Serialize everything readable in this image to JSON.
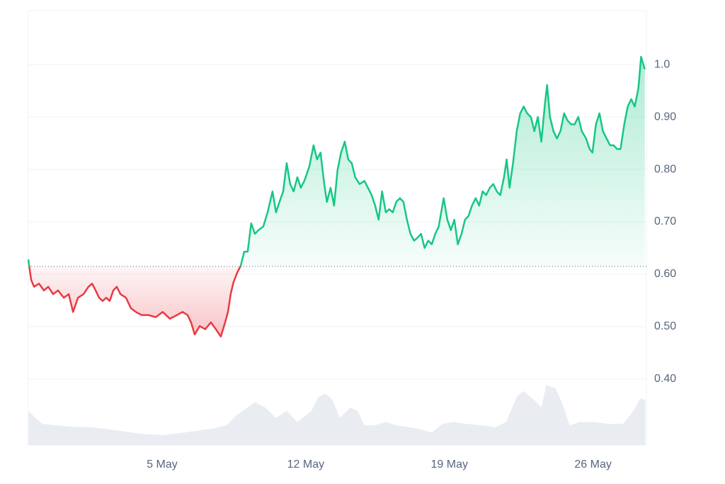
{
  "chart_data": {
    "type": "line",
    "x": [
      -1.52,
      -1.38,
      -1.24,
      -1.0,
      -0.76,
      -0.55,
      -0.31,
      -0.07,
      0.21,
      0.45,
      0.66,
      0.9,
      1.17,
      1.41,
      1.59,
      1.76,
      1.93,
      2.1,
      2.28,
      2.45,
      2.62,
      2.79,
      2.97,
      3.24,
      3.48,
      3.72,
      4.0,
      4.34,
      4.69,
      5.03,
      5.38,
      5.72,
      6.0,
      6.24,
      6.41,
      6.59,
      6.83,
      7.1,
      7.38,
      7.62,
      7.86,
      8.07,
      8.21,
      8.34,
      8.48,
      8.66,
      8.83,
      9.0,
      9.17,
      9.34,
      9.52,
      9.69,
      9.93,
      10.14,
      10.38,
      10.55,
      10.72,
      10.9,
      11.07,
      11.24,
      11.41,
      11.59,
      11.76,
      11.93,
      12.17,
      12.38,
      12.55,
      12.72,
      12.9,
      13.03,
      13.21,
      13.38,
      13.55,
      13.72,
      13.9,
      14.07,
      14.24,
      14.41,
      14.62,
      14.86,
      15.03,
      15.21,
      15.38,
      15.55,
      15.72,
      15.9,
      16.07,
      16.24,
      16.41,
      16.59,
      16.76,
      16.93,
      17.1,
      17.28,
      17.45,
      17.62,
      17.79,
      17.97,
      18.14,
      18.31,
      18.48,
      18.72,
      18.9,
      19.07,
      19.24,
      19.41,
      19.59,
      19.76,
      19.93,
      20.1,
      20.28,
      20.45,
      20.62,
      20.79,
      20.97,
      21.14,
      21.31,
      21.48,
      21.66,
      21.79,
      21.93,
      22.1,
      22.28,
      22.45,
      22.62,
      22.79,
      22.97,
      23.14,
      23.31,
      23.48,
      23.66,
      23.76,
      23.9,
      24.07,
      24.24,
      24.41,
      24.59,
      24.76,
      24.93,
      25.1,
      25.28,
      25.45,
      25.66,
      25.83,
      25.97,
      26.14,
      26.31,
      26.48,
      26.66,
      26.83,
      27.0,
      27.17,
      27.34,
      27.52,
      27.69,
      27.86,
      28.03,
      28.21,
      28.34,
      28.52
    ],
    "series": [
      {
        "color": "#16c784",
        "color_below": "#ea3943",
        "values": [
          0.628,
          0.589,
          0.576,
          0.582,
          0.569,
          0.576,
          0.562,
          0.569,
          0.555,
          0.562,
          0.528,
          0.555,
          0.562,
          0.576,
          0.582,
          0.569,
          0.555,
          0.549,
          0.555,
          0.549,
          0.569,
          0.576,
          0.562,
          0.555,
          0.535,
          0.528,
          0.522,
          0.522,
          0.518,
          0.528,
          0.515,
          0.522,
          0.528,
          0.522,
          0.508,
          0.485,
          0.501,
          0.495,
          0.508,
          0.495,
          0.481,
          0.508,
          0.528,
          0.562,
          0.585,
          0.603,
          0.616,
          0.643,
          0.643,
          0.697,
          0.677,
          0.684,
          0.691,
          0.718,
          0.758,
          0.718,
          0.738,
          0.758,
          0.812,
          0.772,
          0.758,
          0.785,
          0.765,
          0.778,
          0.805,
          0.846,
          0.819,
          0.832,
          0.772,
          0.738,
          0.765,
          0.731,
          0.799,
          0.832,
          0.853,
          0.819,
          0.812,
          0.785,
          0.772,
          0.778,
          0.765,
          0.751,
          0.731,
          0.704,
          0.758,
          0.718,
          0.724,
          0.718,
          0.738,
          0.745,
          0.738,
          0.704,
          0.677,
          0.664,
          0.67,
          0.677,
          0.65,
          0.664,
          0.657,
          0.677,
          0.691,
          0.745,
          0.704,
          0.684,
          0.704,
          0.657,
          0.677,
          0.704,
          0.711,
          0.731,
          0.745,
          0.731,
          0.758,
          0.751,
          0.765,
          0.772,
          0.758,
          0.751,
          0.785,
          0.819,
          0.765,
          0.812,
          0.873,
          0.907,
          0.92,
          0.907,
          0.9,
          0.873,
          0.9,
          0.853,
          0.927,
          0.961,
          0.9,
          0.873,
          0.859,
          0.873,
          0.907,
          0.893,
          0.886,
          0.886,
          0.9,
          0.873,
          0.859,
          0.839,
          0.832,
          0.886,
          0.907,
          0.873,
          0.859,
          0.846,
          0.846,
          0.839,
          0.839,
          0.886,
          0.92,
          0.934,
          0.92,
          0.955,
          1.015,
          0.991
        ]
      }
    ],
    "baseline": 0.615,
    "volume": {
      "color": "#e9edf2",
      "ylim": [
        0,
        100
      ],
      "x": [
        -1.52,
        -1.17,
        -0.83,
        -0.14,
        0.55,
        1.59,
        2.62,
        4.0,
        5.03,
        6.07,
        7.45,
        8.14,
        8.66,
        9.17,
        9.52,
        10.03,
        10.55,
        11.07,
        11.59,
        12.28,
        12.62,
        12.97,
        13.31,
        13.66,
        14.17,
        14.52,
        14.86,
        15.38,
        15.9,
        16.41,
        17.45,
        18.14,
        18.66,
        19.17,
        19.86,
        20.55,
        21.24,
        21.76,
        22.28,
        22.62,
        23.14,
        23.48,
        23.72,
        24.17,
        24.52,
        24.86,
        25.38,
        26.07,
        26.76,
        27.45,
        27.97,
        28.31,
        28.55
      ],
      "values": [
        52,
        41,
        32,
        30,
        28,
        27,
        23,
        17,
        15,
        19,
        25,
        30,
        46,
        57,
        65,
        57,
        41,
        52,
        35,
        52,
        73,
        78,
        68,
        41,
        57,
        52,
        30,
        30,
        35,
        30,
        25,
        19,
        32,
        35,
        32,
        30,
        27,
        35,
        73,
        82,
        68,
        57,
        91,
        86,
        62,
        30,
        35,
        35,
        32,
        32,
        52,
        71,
        68
      ]
    },
    "xlim": [
      -1.52,
      28.6
    ],
    "xticks": [
      {
        "value": 5,
        "label": "5 May"
      },
      {
        "value": 12,
        "label": "12 May"
      },
      {
        "value": 19,
        "label": "19 May"
      },
      {
        "value": 26,
        "label": "26 May"
      }
    ],
    "ylim": [
      0.274,
      1.103
    ],
    "yticks": [
      {
        "value": 0.4,
        "label": "0.40"
      },
      {
        "value": 0.5,
        "label": "0.50"
      },
      {
        "value": 0.6,
        "label": "0.60"
      },
      {
        "value": 0.7,
        "label": "0.70"
      },
      {
        "value": 0.8,
        "label": "0.80"
      },
      {
        "value": 0.9,
        "label": "0.90"
      },
      {
        "value": 1,
        "label": "1.0"
      }
    ],
    "grid": true
  }
}
